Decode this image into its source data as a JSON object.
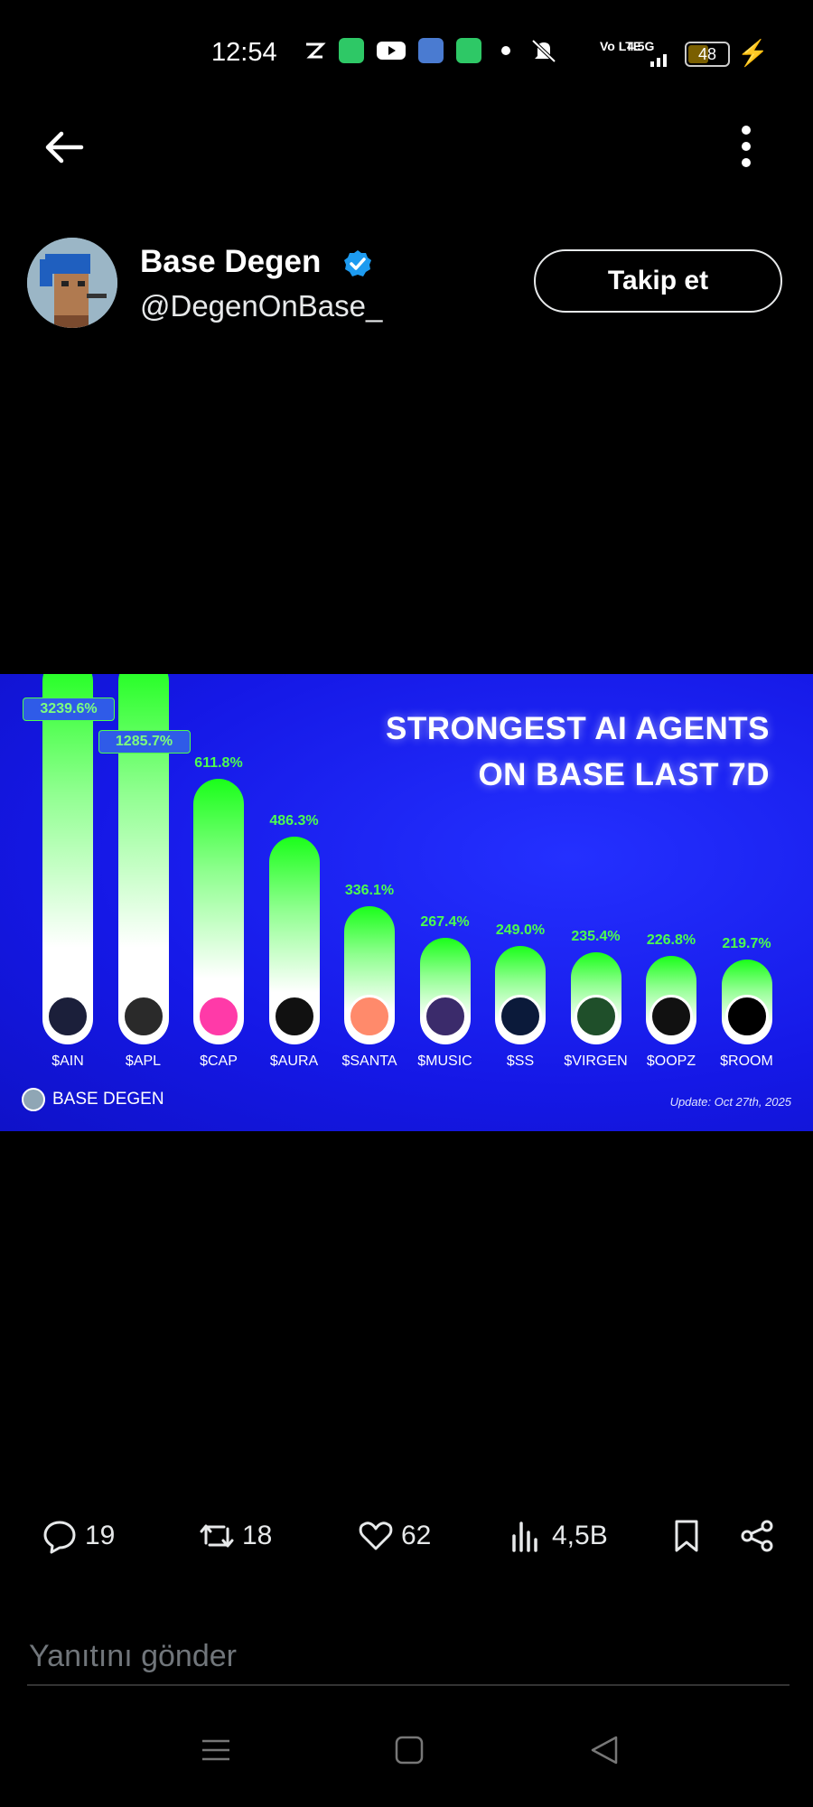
{
  "status_bar": {
    "time": "12:54",
    "network": "4.5G",
    "volte": "Vo LTE",
    "battery": "48"
  },
  "icons": {
    "back": "arrow-left-icon",
    "more": "more-vertical-icon",
    "verified": "verified-badge-icon"
  },
  "user": {
    "name": "Base Degen",
    "handle": "@DegenOnBase_",
    "follow_label": "Takip et"
  },
  "media": {
    "title_line1": "STRONGEST AI AGENTS",
    "title_line2": "ON BASE LAST 7D",
    "brand": "BASE DEGEN",
    "update": "Update: Oct 27th, 2025"
  },
  "chart_data": {
    "type": "bar",
    "title": "STRONGEST AI AGENTS ON BASE LAST 7D",
    "categories": [
      "$AIN",
      "$APL",
      "$CAP",
      "$AURA",
      "$SANTA",
      "$MUSIC",
      "$SS",
      "$VIRGEN",
      "$OOPZ",
      "$ROOM"
    ],
    "values": [
      3239.6,
      1285.7,
      611.8,
      486.3,
      336.1,
      267.4,
      249.0,
      235.4,
      226.8,
      219.7
    ],
    "value_labels": [
      "3239.6%",
      "1285.7%",
      "611.8%",
      "486.3%",
      "336.1%",
      "267.4%",
      "249.0%",
      "235.4%",
      "226.8%",
      "219.7%"
    ],
    "icon_colors": [
      "#1b1f3a",
      "#2a2a2a",
      "#ff3aa8",
      "#111111",
      "#ff8a6b",
      "#3b2b6b",
      "#0b1a3a",
      "#1f4f2a",
      "#111111",
      "#000000"
    ]
  },
  "actions": {
    "replies": "19",
    "reposts": "18",
    "likes": "62",
    "views": "4,5B"
  },
  "reply": {
    "placeholder": "Yanıtını gönder"
  }
}
